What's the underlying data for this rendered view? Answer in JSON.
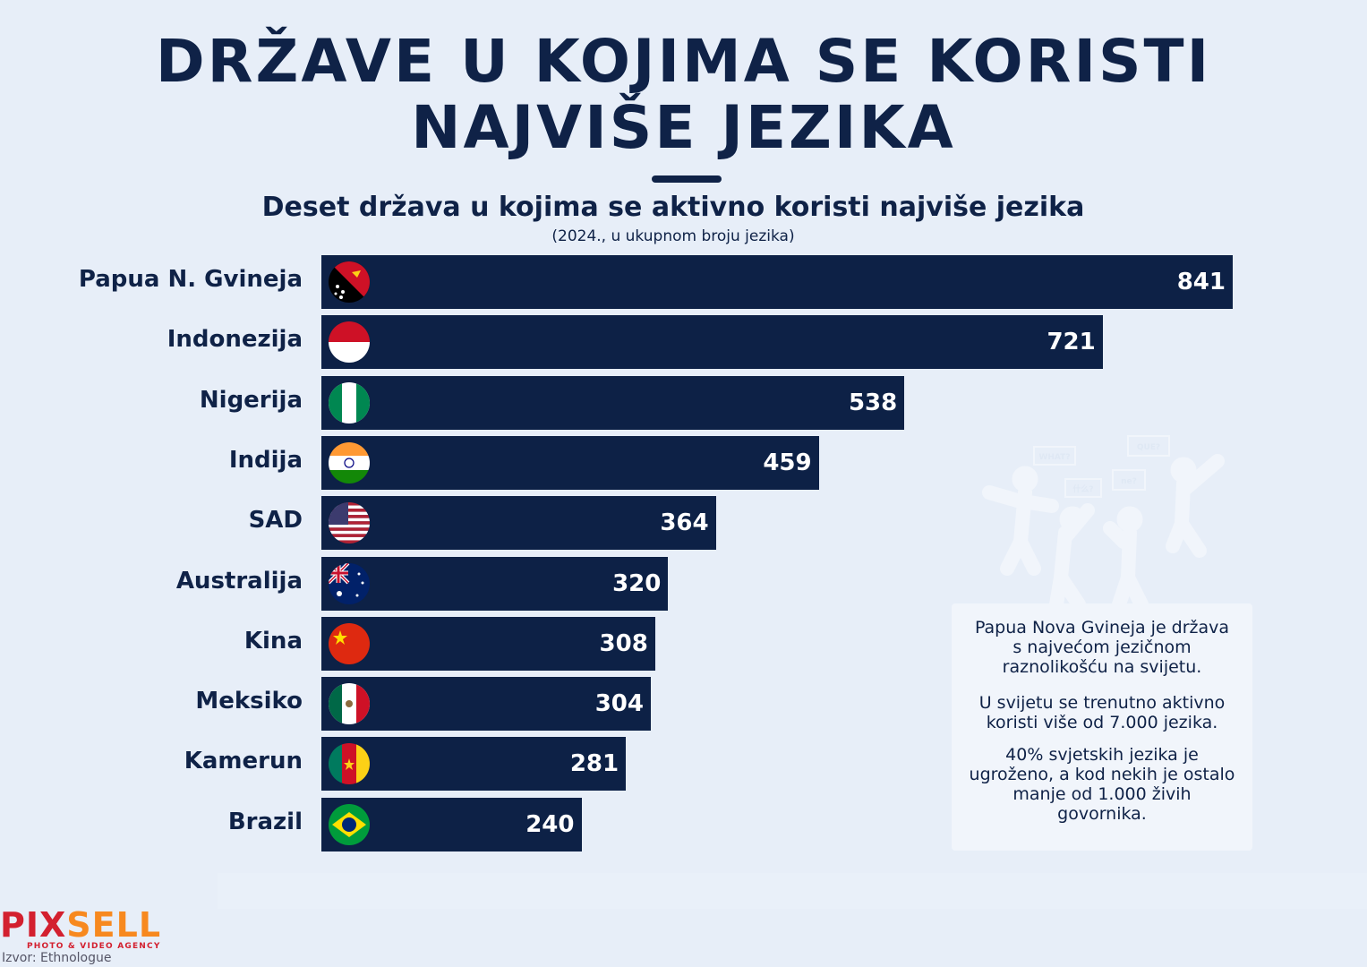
{
  "chart_data": {
    "type": "bar",
    "orientation": "horizontal",
    "title": "DRŽAVE U KOJIMA SE KORISTI NAJVIŠE JEZIKA",
    "subtitle": "Deset država u kojima se aktivno koristi najviše jezika",
    "note": "(2024., u ukupnom broju jezika)",
    "categories": [
      "Papua N. Gvineja",
      "Indonezija",
      "Nigerija",
      "Indija",
      "SAD",
      "Australija",
      "Kina",
      "Meksiko",
      "Kamerun",
      "Brazil"
    ],
    "values": [
      841,
      721,
      538,
      459,
      364,
      320,
      308,
      304,
      281,
      240
    ],
    "flags": [
      "png",
      "idn",
      "nga",
      "ind",
      "usa",
      "aus",
      "chn",
      "mex",
      "cmr",
      "bra"
    ],
    "xlim": [
      0,
      841
    ],
    "bar_color": "#0d2146",
    "grid": false
  },
  "title_lines": [
    "DRŽAVE U KOJIMA SE KORISTI",
    "NAJVIŠE JEZIKA"
  ],
  "info": [
    "Papua Nova Gvineja je država s najvećom jezičnom raznolikošću na svijetu.",
    "U svijetu se trenutno aktivno koristi više od 7.000 jezika.",
    "40% svjetskih jezika je ugroženo, a kod nekih je ostalo manje od 1.000 živih govornika."
  ],
  "illustration_bubbles": [
    "WHAT?",
    "什么?",
    "ne?",
    "QUE?"
  ],
  "logo": {
    "part1": "PIX",
    "part2": "SELL",
    "tagline": "PHOTO & VIDEO AGENCY"
  },
  "source": "Izvor: Ethnologue"
}
